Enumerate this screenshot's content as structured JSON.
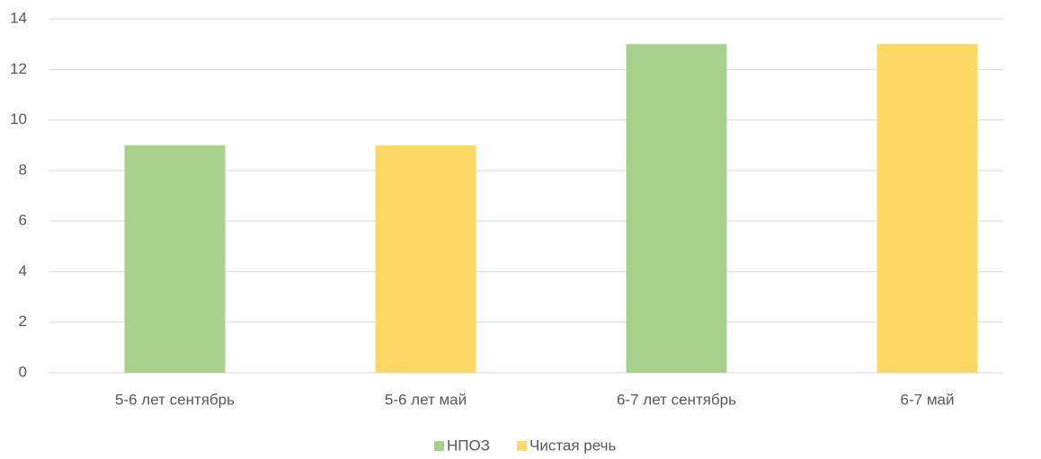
{
  "chart_data": {
    "type": "bar",
    "categories": [
      "5-6 лет сентябрь",
      "5-6 лет май",
      "6-7 лет сентябрь",
      "6-7 май"
    ],
    "series": [
      {
        "name": "НПОЗ",
        "color": "#a9d18e",
        "values": [
          9,
          null,
          13,
          null
        ]
      },
      {
        "name": "Чистая речь",
        "color": "#ffd966",
        "values": [
          null,
          9,
          null,
          13
        ]
      }
    ],
    "ylim": [
      0,
      14
    ],
    "yticks": [
      0,
      2,
      4,
      6,
      8,
      10,
      12,
      14
    ],
    "grid": true,
    "legend": "bottom"
  }
}
